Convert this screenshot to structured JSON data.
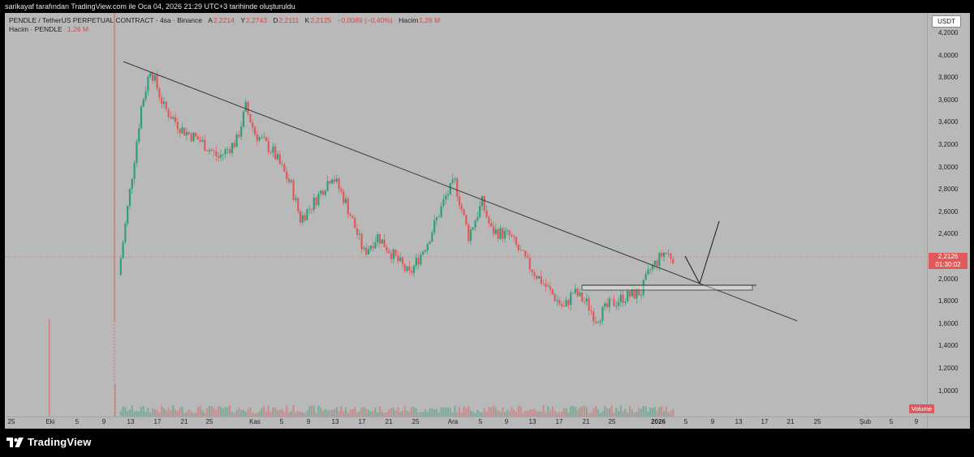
{
  "caption": "sarikayaf tarafından TradingView.com ile Oca 04, 2026 21:29 UTC+3 tarihinde oluşturuldu",
  "legend": {
    "symbol": "PENDLE / TetherUS PERPETUAL CONTRACT · 4sa · Binance",
    "open_key": "A",
    "open": "2,2214",
    "high_key": "Y",
    "high": "2,2743",
    "low_key": "D",
    "low": "2,2111",
    "close_key": "K",
    "close": "2,2125",
    "change": "−0,0089 (−0,40%)",
    "volume_key": "Hacim",
    "volume": "1,26 M"
  },
  "volume_legend": {
    "label": "Hacim · PENDLE",
    "value": "1,26 M"
  },
  "currency": "USDT",
  "price_ticks": [
    "4,2000",
    "4,0000",
    "3,8000",
    "3,6000",
    "3,4000",
    "3,2000",
    "3,0000",
    "2,8000",
    "2,6000",
    "2,4000",
    "2,2000",
    "2,0000",
    "1,8000",
    "1,6000",
    "1,4000",
    "1,2000",
    "1,0000"
  ],
  "time_ticks": [
    {
      "label": "25",
      "bold": false
    },
    {
      "label": "Eki",
      "bold": false
    },
    {
      "label": "5",
      "bold": false
    },
    {
      "label": "9",
      "bold": false
    },
    {
      "label": "13",
      "bold": false
    },
    {
      "label": "17",
      "bold": false
    },
    {
      "label": "21",
      "bold": false
    },
    {
      "label": "25",
      "bold": false
    },
    {
      "label": "Kas",
      "bold": false
    },
    {
      "label": "5",
      "bold": false
    },
    {
      "label": "9",
      "bold": false
    },
    {
      "label": "13",
      "bold": false
    },
    {
      "label": "17",
      "bold": false
    },
    {
      "label": "21",
      "bold": false
    },
    {
      "label": "25",
      "bold": false
    },
    {
      "label": "Ara",
      "bold": false
    },
    {
      "label": "5",
      "bold": false
    },
    {
      "label": "9",
      "bold": false
    },
    {
      "label": "13",
      "bold": false
    },
    {
      "label": "17",
      "bold": false
    },
    {
      "label": "21",
      "bold": false
    },
    {
      "label": "25",
      "bold": false
    },
    {
      "label": "2026",
      "bold": true
    },
    {
      "label": "5",
      "bold": false
    },
    {
      "label": "9",
      "bold": false
    },
    {
      "label": "13",
      "bold": false
    },
    {
      "label": "17",
      "bold": false
    },
    {
      "label": "21",
      "bold": false
    },
    {
      "label": "25",
      "bold": false
    },
    {
      "label": "Şub",
      "bold": false
    },
    {
      "label": "5",
      "bold": false
    },
    {
      "label": "9",
      "bold": false
    }
  ],
  "price_label": {
    "price": "2,2126",
    "countdown": "01:30:02"
  },
  "volume_badge": "Volume",
  "brand": "TradingView",
  "colors": {
    "up": "#2e9e7a",
    "down": "#e0595a",
    "background": "#b9b9b9"
  },
  "chart_data": {
    "type": "candlestick",
    "ylim": [
      1.0,
      4.2
    ],
    "current_price": 2.2126,
    "series": [
      {
        "name": "price",
        "anchors": [
          [
            0,
            2.05
          ],
          [
            5,
            3.55
          ],
          [
            7,
            3.9
          ],
          [
            10,
            3.55
          ],
          [
            14,
            3.35
          ],
          [
            18,
            3.25
          ],
          [
            22,
            3.1
          ],
          [
            26,
            3.25
          ],
          [
            28,
            3.55
          ],
          [
            30,
            3.32
          ],
          [
            34,
            3.15
          ],
          [
            38,
            2.85
          ],
          [
            40,
            2.55
          ],
          [
            43,
            2.7
          ],
          [
            47,
            2.95
          ],
          [
            50,
            2.7
          ],
          [
            54,
            2.25
          ],
          [
            57,
            2.4
          ],
          [
            61,
            2.2
          ],
          [
            64,
            2.05
          ],
          [
            68,
            2.35
          ],
          [
            72,
            2.75
          ],
          [
            74,
            2.88
          ],
          [
            77,
            2.4
          ],
          [
            80,
            2.7
          ],
          [
            82,
            2.45
          ],
          [
            86,
            2.4
          ],
          [
            90,
            2.15
          ],
          [
            94,
            1.95
          ],
          [
            98,
            1.75
          ],
          [
            100,
            1.9
          ],
          [
            103,
            1.8
          ],
          [
            105,
            1.66
          ],
          [
            108,
            1.78
          ],
          [
            111,
            1.85
          ],
          [
            115,
            1.9
          ],
          [
            117,
            2.1
          ],
          [
            120,
            2.25
          ],
          [
            122,
            2.2126
          ]
        ]
      }
    ],
    "volume_peaks": [
      2.0,
      0.9
    ],
    "annotations": [
      {
        "type": "trendline",
        "from": {
          "date": "Eki 12",
          "price": 3.95
        },
        "to": {
          "date": "Oca 21",
          "price": 1.64
        }
      },
      {
        "type": "support_zone",
        "from": "Ara 20",
        "to": "Oca 17",
        "price": 1.95
      },
      {
        "type": "projection_path",
        "points": [
          {
            "price": 2.22
          },
          {
            "price": 1.95
          },
          {
            "price": 2.53
          }
        ]
      }
    ]
  }
}
